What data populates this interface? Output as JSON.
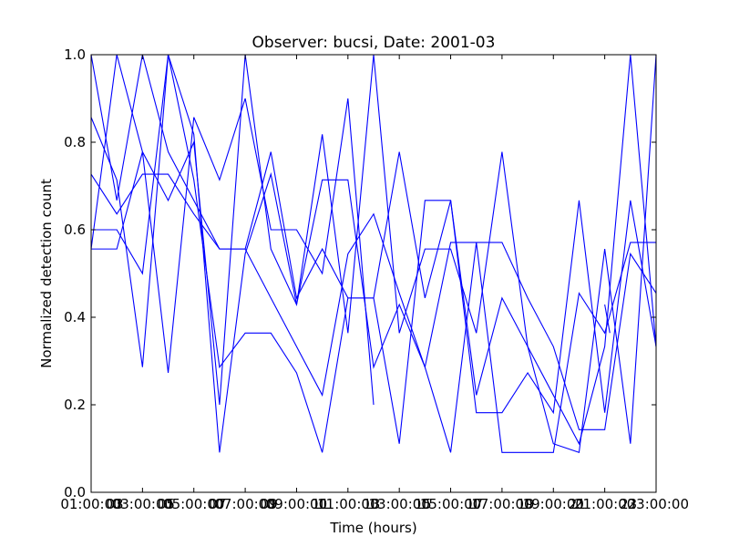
{
  "chart_data": {
    "type": "line",
    "title": "Observer: bucsi, Date: 2001-03",
    "xlabel": "Time (hours)",
    "ylabel": "Normalized detection count",
    "xlim": [
      1,
      23
    ],
    "ylim": [
      0.0,
      1.0
    ],
    "grid": false,
    "line_color": "#0000ff",
    "x_ticks": [
      1,
      3,
      5,
      7,
      9,
      11,
      13,
      15,
      17,
      19,
      21,
      23
    ],
    "x_tick_labels": [
      "01:00:00",
      "03:00:00",
      "05:00:00",
      "07:00:00",
      "09:00:00",
      "11:00:00",
      "13:00:00",
      "15:00:00",
      "17:00:00",
      "19:00:00",
      "21:00:00",
      "23:00:00"
    ],
    "x_tick_overlay_labels": [
      "03",
      "05",
      "07",
      "09",
      "11",
      "13",
      "15",
      "17",
      "19",
      "21",
      "23"
    ],
    "y_ticks": [
      0.0,
      0.2,
      0.4,
      0.6,
      0.8,
      1.0
    ],
    "y_tick_labels": [
      "0.0",
      "0.2",
      "0.4",
      "0.6",
      "0.8",
      "1.0"
    ],
    "series": [
      {
        "values": [
          [
            1,
            1.0
          ],
          [
            2,
            0.667
          ],
          [
            3,
            1.0
          ],
          [
            4,
            0.778
          ],
          [
            5,
            0.667
          ],
          [
            6,
            0.556
          ],
          [
            7,
            0.556
          ],
          [
            8,
            0.778
          ],
          [
            9,
            0.444
          ],
          [
            10,
            0.556
          ],
          [
            11,
            0.444
          ],
          [
            12,
            0.444
          ],
          [
            13,
            0.778
          ],
          [
            14,
            0.444
          ],
          [
            15,
            0.667
          ],
          [
            16,
            0.222
          ],
          [
            17,
            0.444
          ],
          [
            18,
            0.333
          ],
          [
            19,
            0.222
          ],
          [
            20,
            0.111
          ],
          [
            21,
            0.333
          ],
          [
            22,
            1.0
          ],
          [
            23,
            0.333
          ]
        ]
      },
      {
        "values": [
          [
            1,
            0.857
          ],
          [
            2,
            0.714
          ],
          [
            3,
            0.286
          ],
          [
            4,
            1.0
          ],
          [
            5,
            0.714
          ],
          [
            6,
            0.286
          ],
          [
            7,
            0.364
          ],
          [
            8,
            0.364
          ],
          [
            9,
            0.273
          ],
          [
            10,
            0.091
          ],
          [
            11,
            0.444
          ],
          [
            12,
            0.444
          ],
          [
            13,
            0.111
          ],
          [
            14,
            0.667
          ],
          [
            15,
            0.667
          ],
          [
            16,
            0.182
          ],
          [
            17,
            0.182
          ],
          [
            18,
            0.273
          ],
          [
            19,
            0.182
          ],
          [
            20,
            0.667
          ],
          [
            21,
            0.182
          ],
          [
            22,
            0.667
          ],
          [
            23,
            0.333
          ]
        ]
      },
      {
        "values": [
          [
            1,
            0.727
          ],
          [
            2,
            0.636
          ],
          [
            3,
            0.727
          ],
          [
            4,
            0.727
          ],
          [
            5,
            0.636
          ],
          [
            6,
            0.556
          ],
          [
            7,
            0.556
          ],
          [
            8,
            0.444
          ],
          [
            9,
            0.333
          ],
          [
            10,
            0.222
          ],
          [
            11,
            0.545
          ],
          [
            12,
            0.636
          ],
          [
            13,
            0.455
          ],
          [
            14,
            0.286
          ],
          [
            15,
            0.571
          ],
          [
            16,
            0.571
          ],
          [
            17,
            0.571
          ],
          [
            18,
            0.444
          ],
          [
            19,
            0.333
          ],
          [
            20,
            0.143
          ],
          [
            21,
            0.143
          ],
          [
            22,
            0.545
          ],
          [
            23,
            0.455
          ]
        ]
      },
      {
        "values": [
          [
            1,
            0.6
          ],
          [
            2,
            0.6
          ],
          [
            3,
            0.5
          ],
          [
            4,
            1.0
          ],
          [
            5,
            0.818
          ],
          [
            6,
            0.091
          ],
          [
            7,
            0.545
          ],
          [
            8,
            0.727
          ],
          [
            9,
            0.429
          ],
          [
            10,
            0.714
          ],
          [
            11,
            0.714
          ],
          [
            12,
            0.286
          ],
          [
            13,
            0.429
          ],
          [
            14,
            0.286
          ],
          [
            15,
            0.091
          ],
          [
            16,
            0.571
          ],
          [
            17,
            0.091
          ],
          [
            18,
            0.091
          ],
          [
            19,
            0.091
          ],
          [
            20,
            0.455
          ],
          [
            21,
            0.364
          ],
          [
            22,
            0.571
          ],
          [
            23,
            0.571
          ]
        ]
      },
      {
        "values": [
          [
            1,
            0.556
          ],
          [
            2,
            0.556
          ],
          [
            3,
            0.778
          ],
          [
            4,
            0.273
          ],
          [
            5,
            0.857
          ],
          [
            6,
            0.714
          ],
          [
            7,
            0.9
          ],
          [
            8,
            0.6
          ],
          [
            9,
            0.6
          ],
          [
            10,
            0.5
          ],
          [
            11,
            0.9
          ],
          [
            12,
            0.2
          ]
        ]
      },
      {
        "values": [
          [
            1,
            0.556
          ],
          [
            2,
            1.0
          ],
          [
            3,
            0.778
          ],
          [
            4,
            0.667
          ],
          [
            5,
            0.8
          ],
          [
            6,
            0.2
          ],
          [
            7,
            1.0
          ],
          [
            8,
            0.556
          ],
          [
            9,
            0.429
          ],
          [
            10,
            0.818
          ],
          [
            11,
            0.364
          ],
          [
            12,
            1.0
          ],
          [
            13,
            0.364
          ],
          [
            14,
            0.556
          ],
          [
            15,
            0.556
          ],
          [
            16,
            0.364
          ],
          [
            17,
            0.778
          ],
          [
            18,
            0.333
          ],
          [
            19,
            0.111
          ],
          [
            20,
            0.091
          ],
          [
            21,
            0.556
          ],
          [
            22,
            0.111
          ],
          [
            23,
            1.0
          ]
        ]
      },
      {
        "values": [
          [
            21,
            0.429
          ],
          [
            21.2,
            0.364
          ]
        ]
      }
    ]
  }
}
